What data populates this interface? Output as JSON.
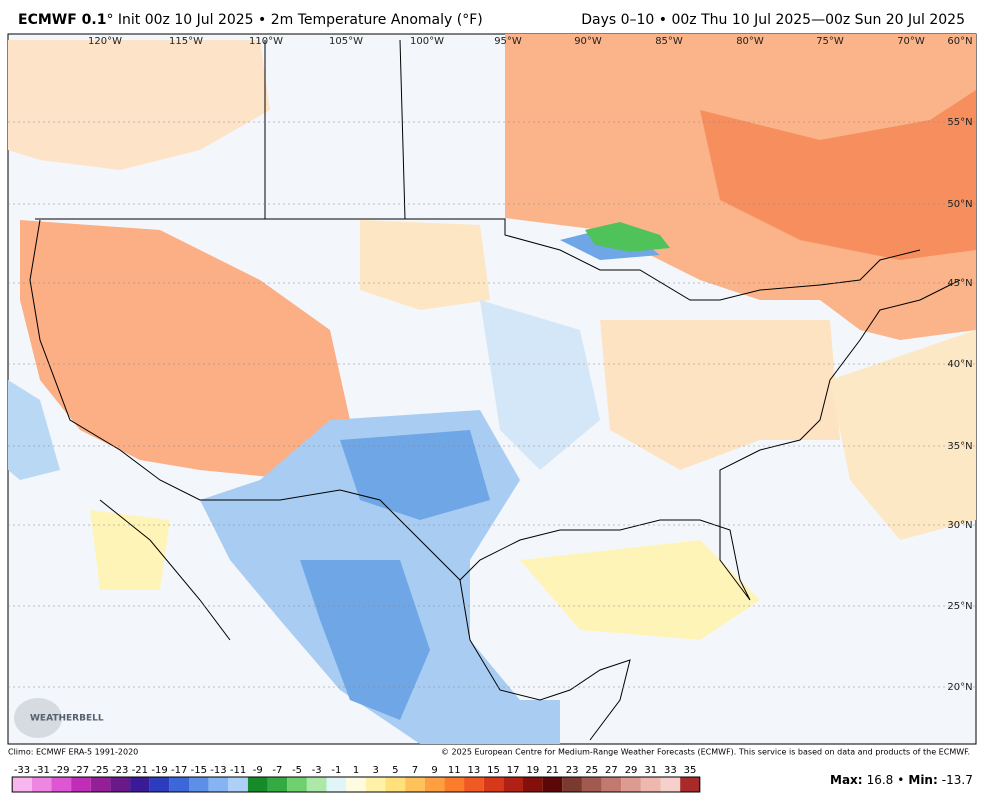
{
  "header": {
    "title_bold": "ECMWF 0.1",
    "title_rest": "° Init 00z 10 Jul 2025 • 2m Temperature Anomaly (°F)",
    "title_right": "Days 0–10 • 00z Thu 10 Jul 2025—00z Sun 20 Jul 2025"
  },
  "map": {
    "lon_labels": [
      "120°W",
      "115°W",
      "110°W",
      "105°W",
      "100°W",
      "95°W",
      "90°W",
      "85°W",
      "80°W",
      "75°W",
      "70°W"
    ],
    "lat_labels": [
      "60°N",
      "55°N",
      "50°N",
      "45°N",
      "40°N",
      "35°N",
      "30°N",
      "25°N",
      "20°N"
    ],
    "logo": "WEATHERBELL"
  },
  "footer": {
    "climo": "Climo: ECMWF ERA-5 1991-2020",
    "copyright": "© 2025 European Centre for Medium-Range Weather Forecasts (ECMWF). This service is based on data and products of the ECMWF."
  },
  "colorbar": {
    "ticks": [
      -33,
      -31,
      -29,
      -27,
      -25,
      -23,
      -21,
      -19,
      -17,
      -15,
      -13,
      -11,
      -9,
      -7,
      -5,
      -3,
      -1,
      1,
      3,
      5,
      7,
      9,
      11,
      13,
      15,
      17,
      19,
      21,
      23,
      25,
      27,
      29,
      31,
      33,
      35
    ],
    "colors": [
      "#f7b6ee",
      "#ee86e2",
      "#df56d4",
      "#c02db6",
      "#951f99",
      "#6a1a88",
      "#3b1a98",
      "#2b3dbd",
      "#3d66d8",
      "#5d8fe8",
      "#86b4f2",
      "#acd0f7",
      "#178a2a",
      "#33ab42",
      "#6ed06e",
      "#aee8a8",
      "#dff5f6",
      "#fffbe0",
      "#fff2a8",
      "#ffe07a",
      "#ffc25a",
      "#ffa040",
      "#fb7d2c",
      "#ef5a22",
      "#d8381a",
      "#b02014",
      "#84100c",
      "#5c0808",
      "#7a3a30",
      "#a05a50",
      "#c27a70",
      "#dc9a90",
      "#eeb8b0",
      "#f6d0ca",
      "#a82a2a"
    ]
  },
  "stats": {
    "max_label": "Max:",
    "max": 16.8,
    "sep": "•",
    "min_label": "Min:",
    "min": -13.7
  }
}
